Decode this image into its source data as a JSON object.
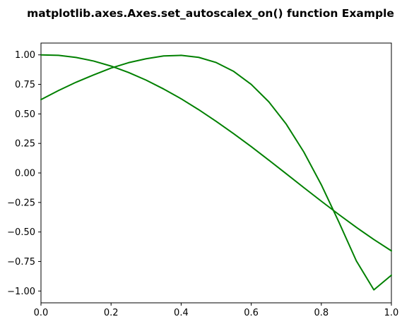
{
  "chart_data": {
    "type": "line",
    "title": "matplotlib.axes.Axes.set_autoscalex_on() function Example",
    "xlabel": "",
    "ylabel": "",
    "xlim": [
      0.0,
      1.0
    ],
    "ylim": [
      -1.1,
      1.1
    ],
    "grid": false,
    "line_color": "#008000",
    "x_ticks": [
      0.0,
      0.2,
      0.4,
      0.6,
      0.8,
      1.0
    ],
    "x_tick_labels": [
      "0.0",
      "0.2",
      "0.4",
      "0.6",
      "0.8",
      "1.0"
    ],
    "y_ticks": [
      1.0,
      0.75,
      0.5,
      0.25,
      0.0,
      -0.25,
      -0.5,
      -0.75,
      -1.0
    ],
    "y_tick_labels": [
      "1.00",
      "0.75",
      "0.50",
      "0.25",
      "0.00",
      "−0.25",
      "−0.50",
      "−0.75",
      "−1.00"
    ],
    "series": [
      {
        "x": [
          0.0,
          0.05,
          0.1,
          0.15,
          0.2,
          0.25,
          0.3,
          0.35,
          0.4,
          0.45,
          0.5,
          0.55,
          0.6,
          0.65,
          0.7,
          0.75,
          0.8,
          0.85,
          0.9,
          0.95,
          1.0
        ],
        "y": [
          1.0,
          0.996,
          0.978,
          0.948,
          0.905,
          0.851,
          0.786,
          0.711,
          0.628,
          0.536,
          0.437,
          0.332,
          0.223,
          0.109,
          -0.007,
          -0.124,
          -0.239,
          -0.352,
          -0.461,
          -0.564,
          -0.66
        ]
      },
      {
        "x": [
          0.0,
          0.05,
          0.1,
          0.15,
          0.2,
          0.25,
          0.3,
          0.35,
          0.4,
          0.45,
          0.5,
          0.55,
          0.6,
          0.65,
          0.7,
          0.75,
          0.8,
          0.85,
          0.9,
          0.95,
          1.0
        ],
        "y": [
          0.621,
          0.698,
          0.768,
          0.83,
          0.888,
          0.934,
          0.967,
          0.991,
          0.996,
          0.979,
          0.935,
          0.86,
          0.75,
          0.603,
          0.413,
          0.178,
          -0.1,
          -0.415,
          -0.745,
          -0.99,
          -0.866
        ]
      }
    ]
  }
}
